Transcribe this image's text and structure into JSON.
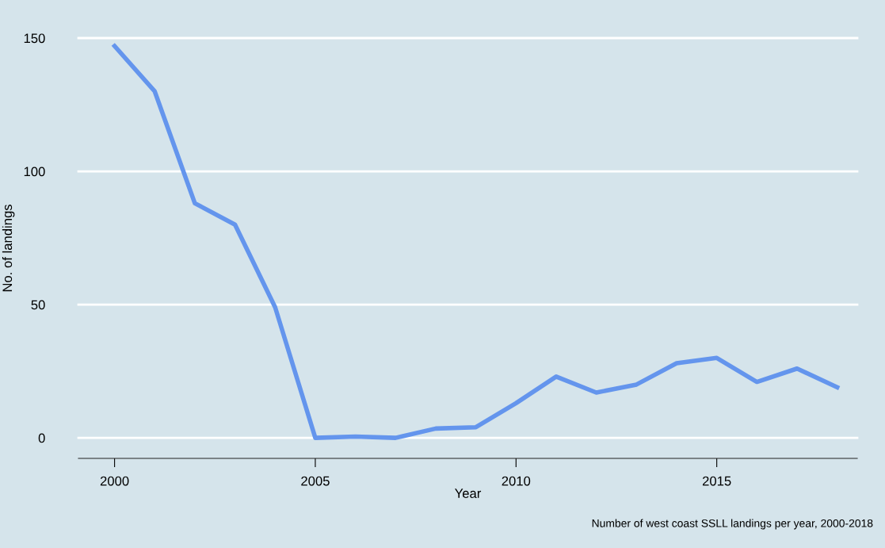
{
  "chart_data": {
    "type": "line",
    "x": [
      2000,
      2001,
      2002,
      2003,
      2004,
      2005,
      2006,
      2007,
      2008,
      2009,
      2010,
      2011,
      2012,
      2013,
      2014,
      2015,
      2016,
      2017,
      2018
    ],
    "series": [
      {
        "color": "#6495ed",
        "values": [
          147,
          130,
          88,
          80,
          49,
          0,
          0.5,
          0,
          3.5,
          4,
          13,
          23,
          17,
          20,
          28,
          30,
          21,
          26,
          19
        ]
      }
    ],
    "xlim": [
      1999.1,
      2018.5
    ],
    "ylim": [
      -7.7,
      150
    ],
    "xticks": [
      2000,
      2005,
      2010,
      2015
    ],
    "yticks": [
      0,
      50,
      100,
      150
    ],
    "xlabel": "Year",
    "ylabel": "No. of landings",
    "grid": "y",
    "annotations": [
      "Number of west coast SSLL landings per year, 2000-2018"
    ]
  }
}
